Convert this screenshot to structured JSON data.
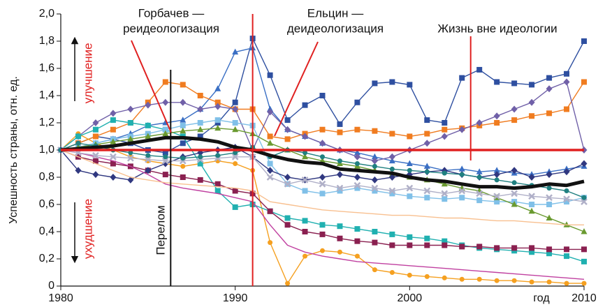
{
  "chart_data": {
    "type": "line",
    "y_label": "Успешность страны, отн. ед.",
    "x_label": "год",
    "x": [
      1980,
      1981,
      1982,
      1983,
      1984,
      1985,
      1986,
      1987,
      1988,
      1989,
      1990,
      1991,
      1992,
      1993,
      1994,
      1995,
      1996,
      1997,
      1998,
      1999,
      2000,
      2001,
      2002,
      2003,
      2004,
      2005,
      2006,
      2007,
      2008,
      2009,
      2010
    ],
    "xlim": [
      1980,
      2010
    ],
    "xticks": [
      1980,
      1990,
      2000,
      2010
    ],
    "ylim": [
      0,
      2
    ],
    "yticks": [
      0,
      {
        "value": 0.2,
        "label": "0,2"
      },
      {
        "value": 0.4,
        "label": "0,4"
      },
      {
        "value": 0.6,
        "label": "0,6"
      },
      {
        "value": 0.8,
        "label": "0,8"
      },
      {
        "value": 1.0,
        "label": "1,0"
      },
      {
        "value": 1.2,
        "label": "1,2"
      },
      {
        "value": 1.4,
        "label": "1,4"
      },
      {
        "value": 1.6,
        "label": "1,6"
      },
      {
        "value": 1.8,
        "label": "1,8"
      },
      {
        "value": 2.0,
        "label": "2,0"
      }
    ],
    "series": [
      {
        "color": "#2e4fa0",
        "marker": "square",
        "values": [
          1.0,
          1.05,
          1.1,
          1.08,
          1.05,
          1.0,
          0.98,
          1.05,
          1.1,
          1.2,
          1.35,
          1.82,
          1.55,
          1.22,
          1.33,
          1.4,
          1.19,
          1.35,
          1.49,
          1.5,
          1.48,
          1.22,
          1.2,
          1.53,
          1.59,
          1.5,
          1.49,
          1.48,
          1.53,
          1.56,
          1.8
        ]
      },
      {
        "color": "#3a6fc4",
        "marker": "triangle",
        "values": [
          1.0,
          1.02,
          1.05,
          1.08,
          1.12,
          1.18,
          1.2,
          1.22,
          1.3,
          1.45,
          1.72,
          1.75,
          1.3,
          1.15,
          1.1,
          1.05,
          1.0,
          0.98,
          0.95,
          0.92,
          0.9,
          0.88,
          0.85,
          0.86,
          0.84,
          0.85,
          0.83,
          0.82,
          0.84,
          0.86,
          0.88
        ]
      },
      {
        "color": "#f07c20",
        "marker": "square",
        "values": [
          1.0,
          1.05,
          1.1,
          1.15,
          1.2,
          1.35,
          1.5,
          1.48,
          1.4,
          1.35,
          1.3,
          1.3,
          1.1,
          1.08,
          1.12,
          1.15,
          1.13,
          1.15,
          1.14,
          1.12,
          1.1,
          1.12,
          1.15,
          1.16,
          1.18,
          1.2,
          1.22,
          1.25,
          1.27,
          1.3,
          1.5
        ]
      },
      {
        "color": "#f5a020",
        "marker": "circle",
        "values": [
          1.0,
          1.12,
          1.05,
          1.0,
          0.95,
          0.92,
          0.9,
          0.88,
          0.9,
          0.92,
          0.9,
          0.85,
          0.32,
          0.02,
          0.22,
          0.26,
          0.25,
          0.22,
          0.12,
          0.1,
          0.08,
          0.07,
          0.06,
          0.05,
          0.05,
          0.04,
          0.04,
          0.03,
          0.03,
          0.02,
          0.02
        ]
      },
      {
        "color": "#7060a8",
        "marker": "diamond",
        "values": [
          1.0,
          1.1,
          1.2,
          1.27,
          1.3,
          1.33,
          1.35,
          1.35,
          1.3,
          1.32,
          1.3,
          1.0,
          1.28,
          1.15,
          1.1,
          1.05,
          1.0,
          0.95,
          0.92,
          0.95,
          1.0,
          1.05,
          1.1,
          1.15,
          1.2,
          1.25,
          1.3,
          1.35,
          1.45,
          1.5,
          1.0
        ]
      },
      {
        "color": "#20b0b0",
        "marker": "square",
        "values": [
          1.0,
          1.1,
          1.15,
          1.22,
          1.2,
          1.18,
          1.15,
          1.1,
          0.9,
          0.7,
          0.58,
          0.6,
          0.55,
          0.5,
          0.48,
          0.45,
          0.44,
          0.42,
          0.4,
          0.38,
          0.36,
          0.35,
          0.33,
          0.3,
          0.28,
          0.27,
          0.26,
          0.25,
          0.24,
          0.22,
          0.18
        ]
      },
      {
        "color": "#8a2050",
        "marker": "square",
        "values": [
          1.0,
          0.95,
          0.92,
          0.9,
          0.88,
          0.85,
          0.82,
          0.8,
          0.78,
          0.75,
          0.7,
          0.68,
          0.55,
          0.45,
          0.4,
          0.38,
          0.35,
          0.33,
          0.32,
          0.3,
          0.3,
          0.3,
          0.3,
          0.29,
          0.29,
          0.28,
          0.28,
          0.28,
          0.27,
          0.27,
          0.27
        ]
      },
      {
        "color": "#80c0e8",
        "marker": "square",
        "values": [
          1.0,
          1.02,
          1.05,
          1.08,
          1.1,
          1.12,
          1.15,
          1.18,
          1.2,
          1.22,
          1.2,
          1.18,
          0.9,
          0.75,
          0.7,
          0.68,
          0.7,
          0.72,
          0.7,
          0.68,
          0.66,
          0.65,
          0.64,
          0.65,
          0.63,
          0.62,
          0.62,
          0.6,
          0.6,
          0.62,
          0.65
        ]
      },
      {
        "color": "#6a9a30",
        "marker": "triangle",
        "values": [
          1.0,
          1.02,
          1.04,
          1.06,
          1.08,
          1.1,
          1.12,
          1.14,
          1.15,
          1.16,
          1.15,
          1.12,
          1.05,
          1.0,
          0.95,
          0.92,
          0.9,
          0.88,
          0.85,
          0.82,
          0.8,
          0.78,
          0.75,
          0.72,
          0.7,
          0.65,
          0.6,
          0.55,
          0.5,
          0.45,
          0.4
        ]
      },
      {
        "color": "#303880",
        "marker": "diamond",
        "values": [
          1.0,
          0.85,
          0.82,
          0.8,
          0.78,
          0.85,
          0.9,
          0.95,
          0.98,
          1.0,
          1.02,
          0.95,
          0.85,
          0.8,
          0.78,
          0.8,
          0.82,
          0.8,
          0.78,
          0.8,
          0.82,
          0.84,
          0.85,
          0.82,
          0.8,
          0.82,
          0.85,
          0.8,
          0.82,
          0.84,
          0.9
        ]
      },
      {
        "color": "#c040a0",
        "marker": "none",
        "values": [
          1.0,
          0.98,
          0.95,
          0.92,
          0.88,
          0.82,
          0.75,
          0.72,
          0.7,
          0.68,
          0.65,
          0.62,
          0.45,
          0.3,
          0.25,
          0.22,
          0.2,
          0.18,
          0.17,
          0.16,
          0.15,
          0.14,
          0.13,
          0.12,
          0.11,
          0.1,
          0.09,
          0.08,
          0.07,
          0.06,
          0.05
        ]
      },
      {
        "color": "#b0b0c8",
        "marker": "cross",
        "values": [
          1.0,
          0.98,
          0.96,
          0.95,
          0.94,
          0.93,
          0.92,
          0.92,
          0.93,
          0.94,
          0.95,
          0.95,
          0.8,
          0.75,
          0.78,
          0.75,
          0.72,
          0.74,
          0.72,
          0.7,
          0.72,
          0.7,
          0.68,
          0.7,
          0.68,
          0.66,
          0.68,
          0.66,
          0.65,
          0.64,
          0.62
        ]
      },
      {
        "color": "#f8c090",
        "marker": "none",
        "values": [
          1.0,
          0.95,
          0.9,
          0.85,
          0.8,
          0.78,
          0.76,
          0.75,
          0.74,
          0.73,
          0.72,
          0.7,
          0.62,
          0.6,
          0.58,
          0.56,
          0.55,
          0.54,
          0.53,
          0.52,
          0.52,
          0.51,
          0.5,
          0.5,
          0.49,
          0.48,
          0.48,
          0.47,
          0.46,
          0.45,
          0.45
        ]
      },
      {
        "color": "#208080",
        "marker": "circle",
        "values": [
          1.0,
          1.05,
          1.03,
          1.0,
          0.98,
          0.96,
          0.95,
          0.94,
          0.95,
          0.96,
          0.98,
          1.02,
          0.95,
          1.0,
          0.98,
          0.95,
          0.92,
          0.9,
          0.88,
          0.86,
          0.85,
          0.84,
          0.83,
          0.82,
          0.8,
          0.78,
          0.76,
          0.74,
          0.72,
          0.7,
          0.65
        ]
      },
      {
        "color": "#111111",
        "marker": "none",
        "width": 5,
        "values": [
          1.0,
          1.01,
          1.02,
          1.03,
          1.05,
          1.07,
          1.09,
          1.09,
          1.08,
          1.06,
          1.02,
          1.0,
          0.96,
          0.93,
          0.91,
          0.9,
          0.86,
          0.85,
          0.84,
          0.83,
          0.8,
          0.78,
          0.77,
          0.75,
          0.73,
          0.73,
          0.72,
          0.73,
          0.75,
          0.74,
          0.77
        ]
      }
    ],
    "hline": {
      "value": 1.0,
      "color": "#e02020"
    },
    "vlines": [
      {
        "x": 1986.3,
        "color": "#111111"
      },
      {
        "x": 1991,
        "color": "#e02020"
      },
      {
        "x": 2003.5,
        "color": "#e02020"
      }
    ],
    "annotations": [
      {
        "lines": [
          "Горбачев —",
          "реидеологизация"
        ]
      },
      {
        "lines": [
          "Ельцин —",
          "деидеологизация"
        ]
      },
      {
        "lines": [
          "Жизнь вне идеологии"
        ]
      }
    ],
    "improvement_label": "улучшение",
    "decline_label": "ухудшение",
    "turn_label": "Перелом"
  }
}
